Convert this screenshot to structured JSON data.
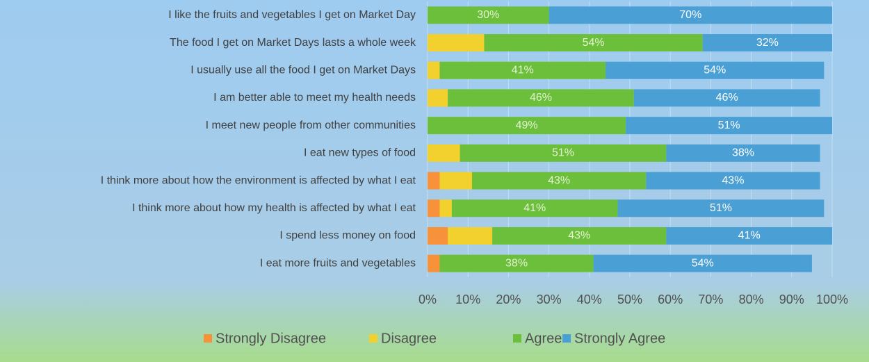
{
  "chart_data": {
    "type": "bar",
    "orientation": "horizontal",
    "stacked": true,
    "categories": [
      "I like the fruits and vegetables I get on Market Day",
      "The food I get on Market Days lasts a whole week",
      "I usually use all the food I get on Market Days",
      "I am better able to meet my health needs",
      "I meet new people from other communities",
      "I eat new types of food",
      "I think more about how the environment is affected by what I eat",
      "I think more about how my health is affected by what I eat",
      "I spend less money on food",
      "I eat more fruits and vegetables"
    ],
    "series": [
      {
        "name": "Strongly Disagree",
        "color": "#f7923a",
        "values": [
          0,
          0,
          0,
          0,
          0,
          0,
          3,
          3,
          5,
          3
        ]
      },
      {
        "name": "Disagree",
        "color": "#f2d02e",
        "values": [
          0,
          14,
          3,
          5,
          0,
          8,
          8,
          3,
          11,
          0
        ]
      },
      {
        "name": "Agree",
        "color": "#6cbf3a",
        "values": [
          30,
          54,
          41,
          46,
          49,
          51,
          43,
          41,
          43,
          38
        ],
        "value_labels": [
          "30%",
          "54%",
          "41%",
          "46%",
          "49%",
          "51%",
          "43%",
          "41%",
          "43%",
          "38%"
        ]
      },
      {
        "name": "Strongly Agree",
        "color": "#4a9fd4",
        "values": [
          70,
          32,
          54,
          46,
          51,
          38,
          43,
          51,
          41,
          54
        ],
        "value_labels": [
          "70%",
          "32%",
          "54%",
          "46%",
          "51%",
          "38%",
          "43%",
          "51%",
          "41%",
          "54%"
        ]
      }
    ],
    "xlim": [
      0,
      100
    ],
    "xticks": [
      {
        "value": 0,
        "label": "0%"
      },
      {
        "value": 10,
        "label": "10%"
      },
      {
        "value": 20,
        "label": "20%"
      },
      {
        "value": 30,
        "label": "30%"
      },
      {
        "value": 40,
        "label": "40%"
      },
      {
        "value": 50,
        "label": "50%"
      },
      {
        "value": 60,
        "label": "60%"
      },
      {
        "value": 70,
        "label": "70%"
      },
      {
        "value": 80,
        "label": "80%"
      },
      {
        "value": 90,
        "label": "90%"
      },
      {
        "value": 100,
        "label": "100%"
      }
    ],
    "grid": true,
    "legend": "bottom"
  }
}
